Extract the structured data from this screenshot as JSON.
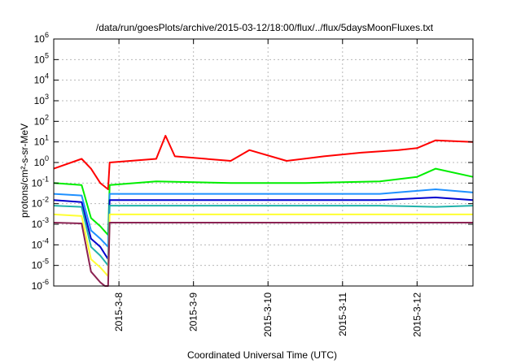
{
  "chart_data": {
    "type": "line",
    "title": "/data/run/goesPlots/archive/2015-03-12/18:00/flux/../flux/5daysMoonFluxes.txt",
    "xlabel": "Coordinated Universal Time (UTC)",
    "ylabel": "protons/cm²-s-sr-MeV",
    "y_scale": "log",
    "ylim": [
      1e-06,
      1000000.0
    ],
    "xlim": [
      "2015-03-07 03:00",
      "2015-03-12 18:00"
    ],
    "grid": true,
    "legend": "none",
    "y_ticks": [
      {
        "base": "10",
        "exp": "-6"
      },
      {
        "base": "10",
        "exp": "-5"
      },
      {
        "base": "10",
        "exp": "-4"
      },
      {
        "base": "10",
        "exp": "-3"
      },
      {
        "base": "10",
        "exp": "-2"
      },
      {
        "base": "10",
        "exp": "-1"
      },
      {
        "base": "10",
        "exp": "0"
      },
      {
        "base": "10",
        "exp": "1"
      },
      {
        "base": "10",
        "exp": "2"
      },
      {
        "base": "10",
        "exp": "3"
      },
      {
        "base": "10",
        "exp": "4"
      },
      {
        "base": "10",
        "exp": "5"
      },
      {
        "base": "10",
        "exp": "6"
      }
    ],
    "x_ticks": [
      "2015-3-8",
      "2015-3-9",
      "2015-3-10",
      "2015-3-11",
      "2015-3-12"
    ],
    "series": [
      {
        "color": "#ff0000",
        "x": [
          "2015-03-07 03:00",
          "2015-03-07 12:00",
          "2015-03-07 15:00",
          "2015-03-07 18:00",
          "2015-03-07 20:30",
          "2015-03-07 21:00",
          "2015-03-08 12:00",
          "2015-03-08 15:00",
          "2015-03-08 18:00",
          "2015-03-09 12:00",
          "2015-03-09 18:00",
          "2015-03-10 06:00",
          "2015-03-10 18:00",
          "2015-03-11 06:00",
          "2015-03-11 18:00",
          "2015-03-12 00:00",
          "2015-03-12 06:00",
          "2015-03-12 18:00"
        ],
        "values": [
          0.5,
          1.5,
          0.5,
          0.1,
          0.05,
          1.0,
          1.5,
          20,
          2.0,
          1.2,
          4.0,
          1.2,
          2.0,
          3.0,
          4.0,
          5.0,
          12,
          10
        ]
      },
      {
        "color": "#00ee00",
        "x": [
          "2015-03-07 03:00",
          "2015-03-07 12:00",
          "2015-03-07 15:00",
          "2015-03-07 18:00",
          "2015-03-07 20:30",
          "2015-03-07 21:00",
          "2015-03-08 12:00",
          "2015-03-09 12:00",
          "2015-03-10 12:00",
          "2015-03-11 12:00",
          "2015-03-12 00:00",
          "2015-03-12 06:00",
          "2015-03-12 18:00"
        ],
        "values": [
          0.1,
          0.08,
          0.002,
          0.0008,
          0.0003,
          0.08,
          0.12,
          0.1,
          0.1,
          0.12,
          0.2,
          0.5,
          0.2
        ]
      },
      {
        "color": "#1e90ff",
        "x": [
          "2015-03-07 03:00",
          "2015-03-07 12:00",
          "2015-03-07 15:00",
          "2015-03-07 18:00",
          "2015-03-07 20:30",
          "2015-03-07 21:00",
          "2015-03-08 12:00",
          "2015-03-09 12:00",
          "2015-03-10 12:00",
          "2015-03-11 12:00",
          "2015-03-12 06:00",
          "2015-03-12 18:00"
        ],
        "values": [
          0.03,
          0.025,
          0.0005,
          0.0002,
          8e-05,
          0.03,
          0.03,
          0.03,
          0.03,
          0.03,
          0.05,
          0.035
        ]
      },
      {
        "color": "#0000cd",
        "x": [
          "2015-03-07 03:00",
          "2015-03-07 12:00",
          "2015-03-07 15:00",
          "2015-03-07 18:00",
          "2015-03-07 20:30",
          "2015-03-07 21:00",
          "2015-03-08 12:00",
          "2015-03-09 12:00",
          "2015-03-10 12:00",
          "2015-03-11 12:00",
          "2015-03-12 06:00",
          "2015-03-12 18:00"
        ],
        "values": [
          0.015,
          0.012,
          0.0002,
          8e-05,
          2e-05,
          0.015,
          0.015,
          0.015,
          0.015,
          0.015,
          0.02,
          0.015
        ]
      },
      {
        "color": "#20b2aa",
        "x": [
          "2015-03-07 03:00",
          "2015-03-07 12:00",
          "2015-03-07 15:00",
          "2015-03-07 18:00",
          "2015-03-07 20:30",
          "2015-03-07 21:00",
          "2015-03-08 12:00",
          "2015-03-09 12:00",
          "2015-03-10 12:00",
          "2015-03-11 12:00",
          "2015-03-12 06:00",
          "2015-03-12 18:00"
        ],
        "values": [
          0.008,
          0.007,
          8e-05,
          3e-05,
          1e-05,
          0.008,
          0.008,
          0.008,
          0.008,
          0.008,
          0.007,
          0.008
        ]
      },
      {
        "color": "#ffff33",
        "x": [
          "2015-03-07 03:00",
          "2015-03-07 12:00",
          "2015-03-07 15:00",
          "2015-03-07 18:00",
          "2015-03-07 20:30",
          "2015-03-07 21:00",
          "2015-03-08 12:00",
          "2015-03-09 12:00",
          "2015-03-10 12:00",
          "2015-03-11 12:00",
          "2015-03-12 06:00",
          "2015-03-12 18:00"
        ],
        "values": [
          0.003,
          0.0025,
          2e-05,
          8e-06,
          3e-06,
          0.003,
          0.003,
          0.003,
          0.003,
          0.003,
          0.003,
          0.003
        ]
      },
      {
        "color": "#8b2252",
        "x": [
          "2015-03-07 03:00",
          "2015-03-07 12:00",
          "2015-03-07 15:00",
          "2015-03-07 18:00",
          "2015-03-07 19:30",
          "2015-03-07 20:30",
          "2015-03-07 21:00",
          "2015-03-08 12:00",
          "2015-03-09 12:00",
          "2015-03-10 12:00",
          "2015-03-11 12:00",
          "2015-03-12 06:00",
          "2015-03-12 18:00"
        ],
        "values": [
          0.0012,
          0.0011,
          5e-06,
          1.5e-06,
          1e-06,
          1e-06,
          0.0012,
          0.0012,
          0.0012,
          0.0012,
          0.0012,
          0.0012,
          0.0012
        ]
      }
    ]
  }
}
